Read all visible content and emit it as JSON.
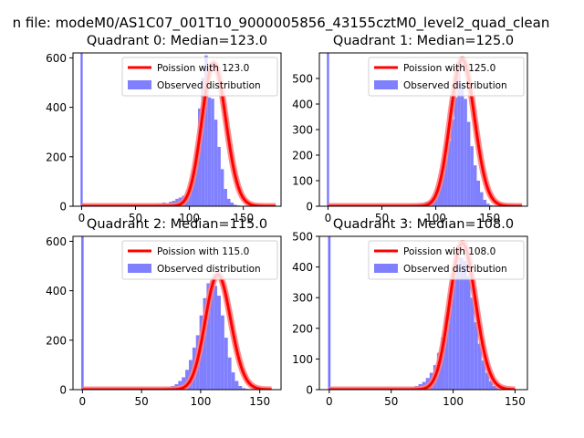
{
  "suptitle": "n file: modeM0/AS1C07_001T10_9000005856_43155cztM0_level2_quad_clean",
  "colors": {
    "poisson_line": "#ff0000",
    "poisson_halo": "#ff8080",
    "histogram": "#8080ff",
    "spike": "#7777ff"
  },
  "chart_data": [
    {
      "type": "bar",
      "title": "Quadrant 0: Median=123.0",
      "median": 123.0,
      "xlim": [
        -8,
        185
      ],
      "ylim": [
        0,
        620
      ],
      "xticks": [
        0,
        50,
        100,
        150
      ],
      "yticks": [
        0,
        200,
        400,
        600
      ],
      "legend": {
        "position": "top-right",
        "entries": [
          "Poission with 123.0",
          "Observed distribution"
        ]
      },
      "spike": {
        "x": 0,
        "width": 2,
        "value": 620
      },
      "bin_width": 3,
      "bin_start": 60,
      "hist_counts": [
        3,
        5,
        5,
        8,
        10,
        15,
        12,
        18,
        22,
        30,
        35,
        42,
        45,
        78,
        120,
        230,
        395,
        520,
        610,
        440,
        435,
        350,
        240,
        150,
        70,
        30,
        15,
        6,
        3,
        1
      ],
      "poisson_lambda": 123.0,
      "poisson_scale": 578,
      "poisson_range": [
        0,
        180
      ]
    },
    {
      "type": "bar",
      "title": "Quadrant 1: Median=125.0",
      "median": 125.0,
      "xlim": [
        -8,
        185
      ],
      "ylim": [
        0,
        600
      ],
      "xticks": [
        0,
        50,
        100,
        150
      ],
      "yticks": [
        0,
        100,
        200,
        300,
        400,
        500
      ],
      "legend": {
        "position": "top-right",
        "entries": [
          "Poission with 125.0",
          "Observed distribution"
        ]
      },
      "spike": {
        "x": 0,
        "width": 2,
        "value": 600
      },
      "bin_width": 3,
      "bin_start": 60,
      "hist_counts": [
        2,
        3,
        4,
        5,
        6,
        7,
        9,
        10,
        12,
        14,
        18,
        22,
        35,
        55,
        85,
        125,
        185,
        255,
        340,
        425,
        525,
        475,
        420,
        330,
        235,
        160,
        100,
        55,
        25,
        10,
        4,
        2
      ],
      "poisson_lambda": 125.0,
      "poisson_scale": 575,
      "poisson_range": [
        0,
        180
      ]
    },
    {
      "type": "bar",
      "title": "Quadrant 2: Median=115.0",
      "median": 115.0,
      "xlim": [
        -8,
        168
      ],
      "ylim": [
        0,
        620
      ],
      "xticks": [
        0,
        50,
        100,
        150
      ],
      "yticks": [
        0,
        200,
        400,
        600
      ],
      "legend": {
        "position": "top-right",
        "entries": [
          "Poission with 115.0",
          "Observed distribution"
        ]
      },
      "spike": {
        "x": 0,
        "width": 2,
        "value": 620
      },
      "bin_width": 3,
      "bin_start": 60,
      "hist_counts": [
        2,
        3,
        5,
        7,
        10,
        15,
        22,
        35,
        50,
        80,
        120,
        170,
        220,
        300,
        370,
        430,
        440,
        420,
        380,
        300,
        210,
        130,
        70,
        35,
        15,
        6,
        3,
        2
      ],
      "poisson_lambda": 115.0,
      "poisson_scale": 465,
      "poisson_range": [
        0,
        160
      ]
    },
    {
      "type": "bar",
      "title": "Quadrant 3: Median=108.0",
      "median": 108.0,
      "xlim": [
        -8,
        160
      ],
      "ylim": [
        0,
        500
      ],
      "xticks": [
        0,
        50,
        100,
        150
      ],
      "yticks": [
        0,
        100,
        200,
        300,
        400,
        500
      ],
      "legend": {
        "position": "top-right",
        "entries": [
          "Poission with 108.0",
          "Observed distribution"
        ]
      },
      "spike": {
        "x": 0,
        "width": 2,
        "value": 500
      },
      "bin_width": 3,
      "bin_start": 60,
      "hist_counts": [
        3,
        5,
        8,
        12,
        18,
        25,
        38,
        55,
        80,
        120,
        170,
        240,
        310,
        380,
        410,
        430,
        420,
        370,
        300,
        220,
        150,
        95,
        55,
        28,
        12,
        5,
        2
      ],
      "poisson_lambda": 108.0,
      "poisson_scale": 478,
      "poisson_range": [
        0,
        150
      ]
    }
  ]
}
